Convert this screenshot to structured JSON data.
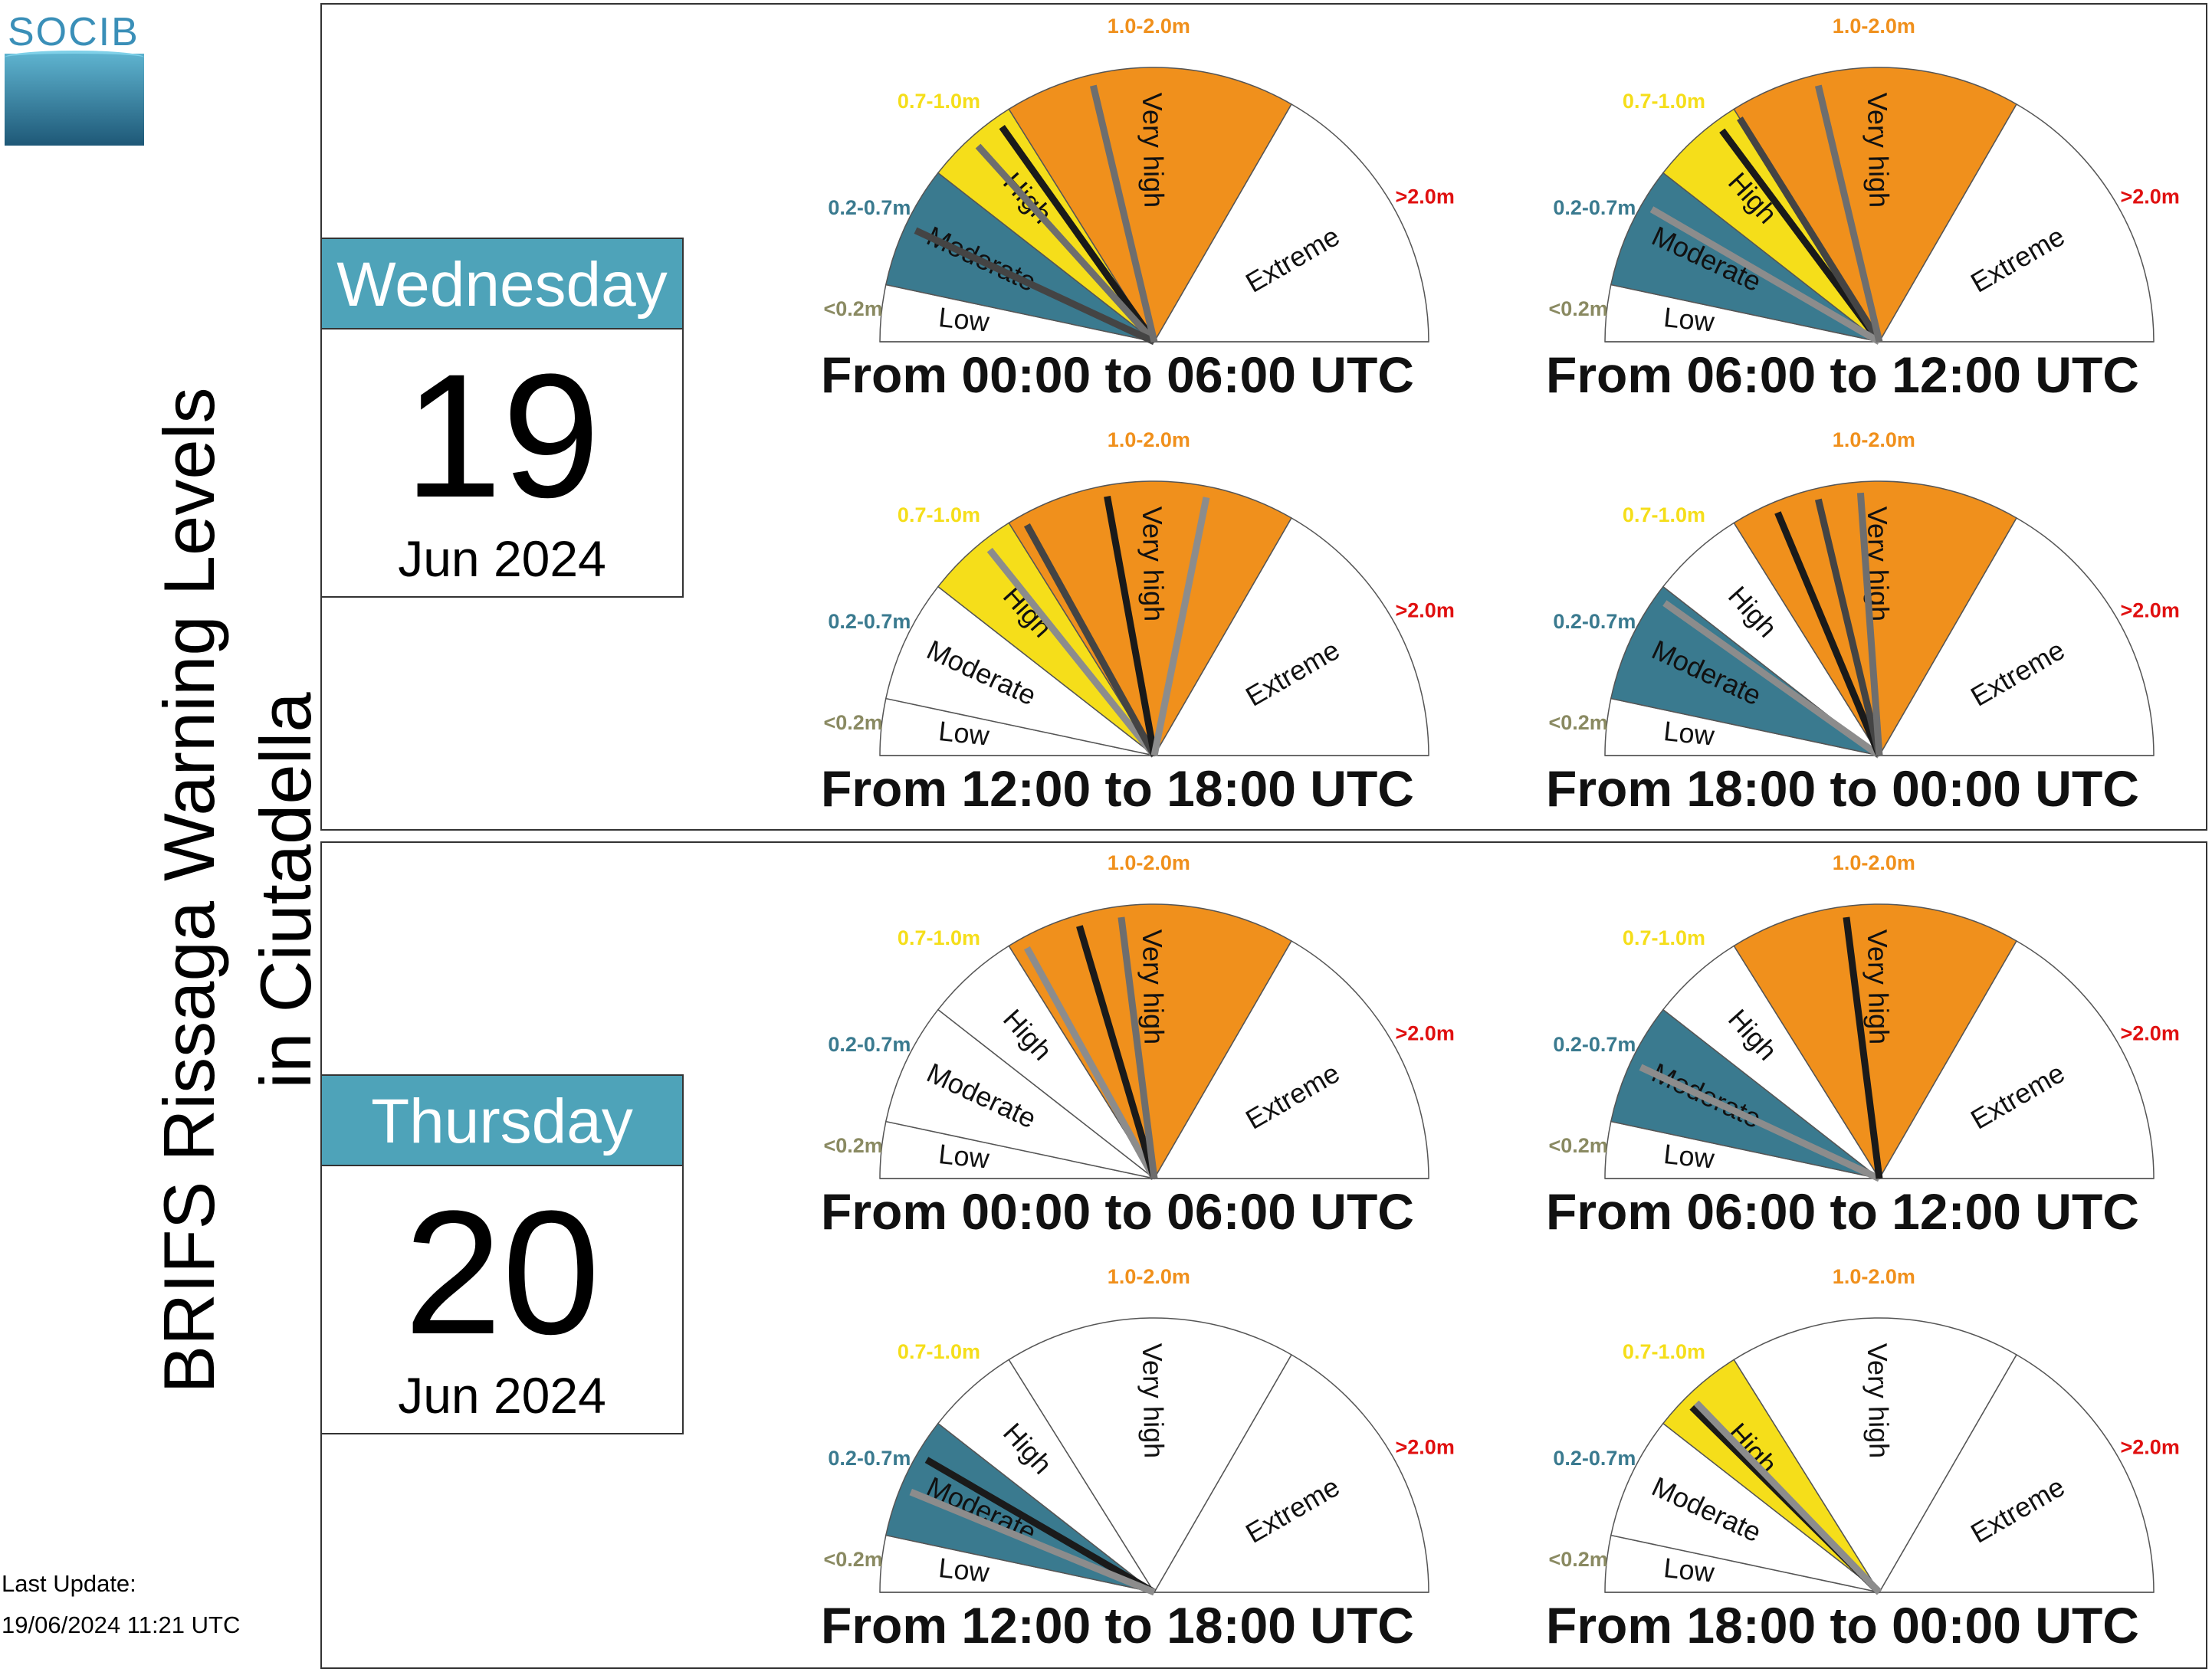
{
  "logo": {
    "text": "SOCIB"
  },
  "title": {
    "line1": "BRIFS Rissaga Warning Levels",
    "line2": "in Ciutadella"
  },
  "last_update": {
    "label": "Last Update:",
    "value": "19/06/2024 11:21 UTC"
  },
  "days": [
    {
      "name": "Wednesday",
      "number": "19",
      "month_year": "Jun 2024"
    },
    {
      "name": "Thursday",
      "number": "20",
      "month_year": "Jun 2024"
    }
  ],
  "colors": {
    "low": "#ffffff",
    "moderate": "#3a7a8f",
    "high": "#f5de1a",
    "very_high": "#f0901c",
    "extreme": "#ffffff",
    "label_low": "#8a8a62",
    "label_moderate": "#3a7a8f",
    "label_high": "#f5de1a",
    "label_very_high": "#f0901c",
    "label_extreme": "#e01010"
  },
  "chart_data": {
    "type": "gauge",
    "levels": [
      "Low",
      "Moderate",
      "High",
      "Very high",
      "Extreme"
    ],
    "thresholds": [
      "<0.2m",
      "0.2-0.7m",
      "0.7-1.0m",
      "1.0-2.0m",
      ">2.0m"
    ],
    "panels": [
      {
        "day": 0,
        "period": "From 00:00 to 06:00 UTC",
        "highlight": [
          "Moderate",
          "High",
          "Very high"
        ],
        "needles_m": [
          {
            "value": 0.95,
            "shade": "#1a1a1a"
          },
          {
            "value": 0.85,
            "shade": "#6e6e6e"
          },
          {
            "value": 0.45,
            "shade": "#444444"
          },
          {
            "value": 1.3,
            "shade": "#6e6e6e"
          }
        ]
      },
      {
        "day": 0,
        "period": "From 06:00 to 12:00 UTC",
        "highlight": [
          "Moderate",
          "High",
          "Very high"
        ],
        "needles_m": [
          {
            "value": 0.93,
            "shade": "#1a1a1a"
          },
          {
            "value": 1.0,
            "shade": "#444444"
          },
          {
            "value": 0.55,
            "shade": "#8c8c8c"
          },
          {
            "value": 1.3,
            "shade": "#6e6e6e"
          }
        ]
      },
      {
        "day": 0,
        "period": "From 12:00 to 18:00 UTC",
        "highlight": [
          "High",
          "Very high"
        ],
        "needles_m": [
          {
            "value": 0.9,
            "shade": "#8c8c8c"
          },
          {
            "value": 1.05,
            "shade": "#444444"
          },
          {
            "value": 1.35,
            "shade": "#1a1a1a"
          },
          {
            "value": 1.7,
            "shade": "#8c8c8c"
          }
        ]
      },
      {
        "day": 0,
        "period": "From 18:00 to 00:00 UTC",
        "highlight": [
          "Moderate",
          "Very high"
        ],
        "needles_m": [
          {
            "value": 0.65,
            "shade": "#8c8c8c"
          },
          {
            "value": 1.15,
            "shade": "#1a1a1a"
          },
          {
            "value": 1.3,
            "shade": "#444444"
          },
          {
            "value": 1.45,
            "shade": "#6e6e6e"
          }
        ]
      },
      {
        "day": 1,
        "period": "From 00:00 to 06:00 UTC",
        "highlight": [
          "Very high"
        ],
        "needles_m": [
          {
            "value": 1.05,
            "shade": "#8c8c8c"
          },
          {
            "value": 1.25,
            "shade": "#1a1a1a"
          },
          {
            "value": 1.4,
            "shade": "#6e6e6e"
          }
        ]
      },
      {
        "day": 1,
        "period": "From 06:00 to 12:00 UTC",
        "highlight": [
          "Moderate",
          "Very high"
        ],
        "needles_m": [
          {
            "value": 0.45,
            "shade": "#8c8c8c"
          },
          {
            "value": 1.4,
            "shade": "#1a1a1a"
          }
        ]
      },
      {
        "day": 1,
        "period": "From 12:00 to 18:00 UTC",
        "highlight": [
          "Moderate"
        ],
        "needles_m": [
          {
            "value": 0.55,
            "shade": "#1a1a1a"
          },
          {
            "value": 0.4,
            "shade": "#8c8c8c"
          }
        ]
      },
      {
        "day": 1,
        "period": "From 18:00 to 00:00 UTC",
        "highlight": [
          "High"
        ],
        "needles_m": [
          {
            "value": 0.8,
            "shade": "#1a1a1a"
          },
          {
            "value": 0.82,
            "shade": "#8c8c8c"
          }
        ]
      }
    ]
  }
}
